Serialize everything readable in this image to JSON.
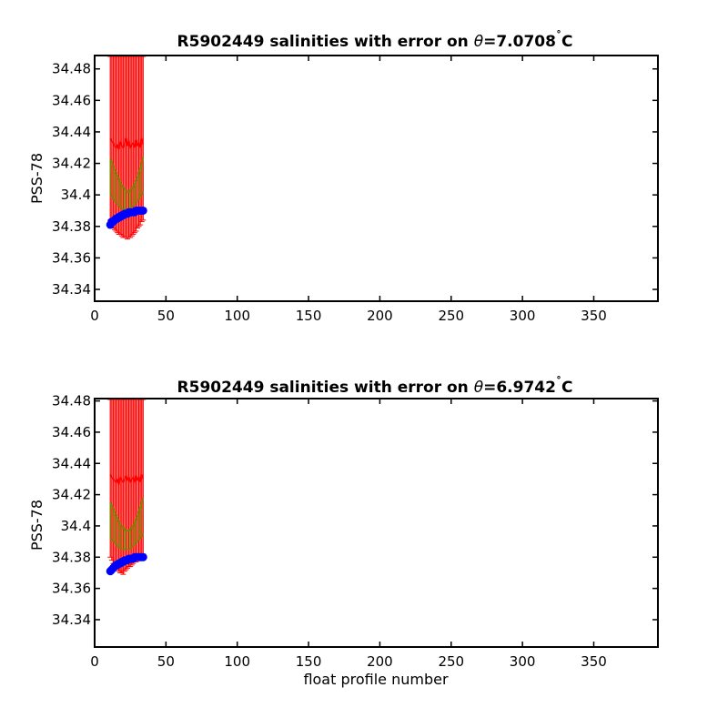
{
  "figure": {
    "background": "#ffffff"
  },
  "colors": {
    "error_bar": "#ff0000",
    "fit_line": "#808000",
    "marker": "#0000ff",
    "axis": "#000000"
  },
  "chart_data": [
    {
      "type": "scatter",
      "title_prefix": "R5902449 salinities with error on ",
      "theta_symbol": "θ",
      "theta_value": "=7.0708",
      "degree": "˚",
      "unit": "C",
      "xlabel": "",
      "ylabel": "PSS-78",
      "xlim": [
        0,
        395
      ],
      "ylim": [
        34.3325,
        34.4885
      ],
      "xticks": [
        0,
        50,
        100,
        150,
        200,
        250,
        300,
        350
      ],
      "yticks": [
        34.34,
        34.36,
        34.38,
        34.4,
        34.42,
        34.44,
        34.46,
        34.48
      ],
      "ytick_labels": [
        "34.34",
        "34.36",
        "34.38",
        "34.4",
        "34.42",
        "34.44",
        "34.46",
        "34.48"
      ],
      "grid": false,
      "series": [
        {
          "role": "float salinity",
          "x": [
            11,
            12,
            13,
            14,
            15,
            16,
            17,
            18,
            19,
            20,
            21,
            22,
            23,
            24,
            25,
            26,
            27,
            28,
            29,
            30,
            31,
            32,
            33,
            34
          ],
          "values": [
            34.381,
            34.383,
            34.383,
            34.384,
            34.385,
            34.385,
            34.386,
            34.386,
            34.387,
            34.387,
            34.388,
            34.388,
            34.388,
            34.389,
            34.389,
            34.389,
            34.389,
            34.389,
            34.39,
            34.39,
            34.39,
            34.39,
            34.39,
            34.39
          ]
        },
        {
          "role": "error bar",
          "x": [
            11,
            12,
            13,
            14,
            15,
            16,
            17,
            18,
            19,
            20,
            21,
            22,
            23,
            24,
            25,
            26,
            27,
            28,
            29,
            30,
            31,
            32,
            33,
            34
          ],
          "low": [
            34.384,
            34.381,
            34.379,
            34.378,
            34.377,
            34.376,
            34.375,
            34.375,
            34.374,
            34.373,
            34.373,
            34.373,
            34.372,
            34.373,
            34.373,
            34.374,
            34.375,
            34.376,
            34.377,
            34.379,
            34.38,
            34.381,
            34.383,
            34.384
          ],
          "high": [
            34.4885,
            34.4885,
            34.4885,
            34.4885,
            34.4885,
            34.4885,
            34.4885,
            34.4885,
            34.4885,
            34.4885,
            34.4885,
            34.4885,
            34.4885,
            34.4885,
            34.4885,
            34.4885,
            34.4885,
            34.4885,
            34.4885,
            34.4885,
            34.4885,
            34.4885,
            34.4885,
            34.4885
          ],
          "upper_mean": [
            34.436,
            34.434,
            34.433,
            34.431,
            34.43,
            34.432,
            34.429,
            34.434,
            34.431,
            34.43,
            34.433,
            34.436,
            34.431,
            34.434,
            34.43,
            34.432,
            34.433,
            34.43,
            34.435,
            34.431,
            34.433,
            34.43,
            34.436,
            34.432
          ]
        },
        {
          "role": "fit",
          "x": [
            11,
            12,
            13,
            14,
            15,
            16,
            17,
            18,
            19,
            20,
            21,
            22,
            23,
            24,
            25,
            26,
            27,
            28,
            29,
            30,
            31,
            32,
            33,
            34
          ],
          "values": [
            34.423,
            34.421,
            34.418,
            34.416,
            34.414,
            34.412,
            34.41,
            34.408,
            34.406,
            34.405,
            34.404,
            34.403,
            34.402,
            34.402,
            34.403,
            34.404,
            34.405,
            34.407,
            34.409,
            34.411,
            34.414,
            34.417,
            34.42,
            34.424
          ],
          "values_low": [
            34.4,
            34.399,
            34.397,
            34.396,
            34.395,
            34.394,
            34.393,
            34.392,
            34.391,
            34.391,
            34.391,
            34.391,
            34.391,
            34.391,
            34.391,
            34.392,
            34.393,
            34.394,
            34.395,
            34.396,
            34.397,
            34.399,
            34.4,
            34.402
          ]
        }
      ]
    },
    {
      "type": "scatter",
      "title_prefix": "R5902449 salinities with error on ",
      "theta_symbol": "θ",
      "theta_value": "=6.9742",
      "degree": "˚",
      "unit": "C",
      "xlabel": "float profile number",
      "ylabel": "PSS-78",
      "xlim": [
        0,
        395
      ],
      "ylim": [
        34.3225,
        34.4815
      ],
      "xticks": [
        0,
        50,
        100,
        150,
        200,
        250,
        300,
        350
      ],
      "yticks": [
        34.34,
        34.36,
        34.38,
        34.4,
        34.42,
        34.44,
        34.46,
        34.48
      ],
      "ytick_labels": [
        "34.34",
        "34.36",
        "34.38",
        "34.4",
        "34.42",
        "34.44",
        "34.46",
        "34.48"
      ],
      "grid": false,
      "series": [
        {
          "role": "float salinity",
          "x": [
            11,
            12,
            13,
            14,
            15,
            16,
            17,
            18,
            19,
            20,
            21,
            22,
            23,
            24,
            25,
            26,
            27,
            28,
            29,
            30,
            31,
            32,
            33,
            34
          ],
          "values": [
            34.371,
            34.372,
            34.373,
            34.374,
            34.375,
            34.375,
            34.376,
            34.376,
            34.377,
            34.377,
            34.378,
            34.378,
            34.378,
            34.379,
            34.379,
            34.379,
            34.379,
            34.38,
            34.38,
            34.38,
            34.38,
            34.38,
            34.38,
            34.38
          ]
        },
        {
          "role": "error bar",
          "x": [
            11,
            12,
            13,
            14,
            15,
            16,
            17,
            18,
            19,
            20,
            21,
            22,
            23,
            24,
            25,
            26,
            27,
            28,
            29,
            30,
            31,
            32,
            33,
            34
          ],
          "low": [
            34.38,
            34.378,
            34.376,
            34.374,
            34.373,
            34.372,
            34.371,
            34.37,
            34.37,
            34.369,
            34.371,
            34.372,
            34.373,
            34.374,
            34.374,
            34.375,
            34.376,
            34.377,
            34.377,
            34.378,
            34.379,
            34.38,
            34.381,
            34.382
          ],
          "high": [
            34.4815,
            34.4815,
            34.4815,
            34.4815,
            34.4815,
            34.4815,
            34.4815,
            34.4815,
            34.4815,
            34.4815,
            34.4815,
            34.4815,
            34.4815,
            34.4815,
            34.4815,
            34.4815,
            34.4815,
            34.4815,
            34.4815,
            34.4815,
            34.4815,
            34.4815,
            34.4815,
            34.4815
          ],
          "upper_mean": [
            34.433,
            34.431,
            34.43,
            34.429,
            34.428,
            34.43,
            34.427,
            34.431,
            34.429,
            34.428,
            34.43,
            34.432,
            34.429,
            34.431,
            34.428,
            34.43,
            34.431,
            34.428,
            34.432,
            34.429,
            34.431,
            34.428,
            34.433,
            34.43
          ]
        },
        {
          "role": "fit",
          "x": [
            11,
            12,
            13,
            14,
            15,
            16,
            17,
            18,
            19,
            20,
            21,
            22,
            23,
            24,
            25,
            26,
            27,
            28,
            29,
            30,
            31,
            32,
            33,
            34
          ],
          "values": [
            34.415,
            34.413,
            34.411,
            34.409,
            34.407,
            34.405,
            34.403,
            34.401,
            34.4,
            34.399,
            34.398,
            34.397,
            34.397,
            34.397,
            34.398,
            34.399,
            34.4,
            34.402,
            34.404,
            34.406,
            34.409,
            34.412,
            34.415,
            34.418
          ],
          "values_low": [
            34.392,
            34.391,
            34.39,
            34.389,
            34.388,
            34.387,
            34.386,
            34.386,
            34.385,
            34.385,
            34.385,
            34.385,
            34.385,
            34.385,
            34.386,
            34.386,
            34.387,
            34.388,
            34.389,
            34.39,
            34.391,
            34.392,
            34.393,
            34.395
          ]
        }
      ]
    }
  ]
}
